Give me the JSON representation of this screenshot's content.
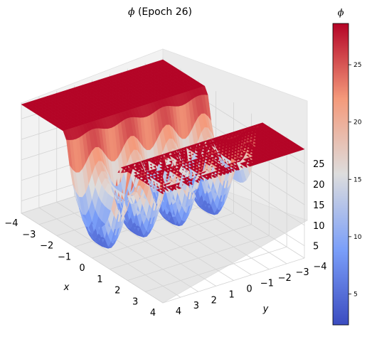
{
  "title_prefix": "ϕ",
  "title_suffix": " (Epoch 26)",
  "chart_data": {
    "type": "surface3d",
    "title": "ϕ (Epoch 26)",
    "xlabel": "x",
    "ylabel": "y",
    "zlabel": "",
    "x_ticks": [
      "−4",
      "−3",
      "−2",
      "−1",
      "0",
      "1",
      "2",
      "3",
      "4"
    ],
    "y_ticks": [
      "−4",
      "−3",
      "−2",
      "−1",
      "0",
      "1",
      "2",
      "3",
      "4"
    ],
    "z_ticks": [
      "5",
      "10",
      "15",
      "20",
      "25"
    ],
    "xlim": [
      -4,
      4
    ],
    "ylim": [
      -4,
      4
    ],
    "zlim": [
      2,
      29
    ],
    "colormap": "coolwarm",
    "colorbar": {
      "label": "ϕ",
      "ticks": [
        "5",
        "10",
        "15",
        "20",
        "25"
      ],
      "range": [
        2.3,
        28.6
      ]
    },
    "surface": {
      "plateau_value": 28.5,
      "plateau_regions": [
        "x < -1.5",
        "x > 1.5"
      ],
      "trough_min": 2.3,
      "ridge_count": 8,
      "ridge_direction": "along y"
    }
  }
}
